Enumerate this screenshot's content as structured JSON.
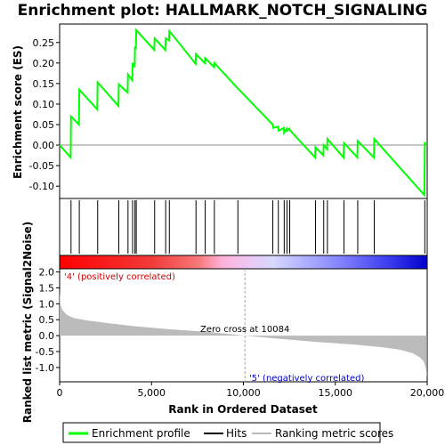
{
  "chart_data": {
    "type": "line",
    "title": "Enrichment plot: HALLMARK_NOTCH_SIGNALING",
    "top_panel": {
      "ylabel": "Enrichment score (ES)",
      "yticks": [
        "0.25",
        "0.20",
        "0.15",
        "0.10",
        "0.05",
        "0.00",
        "-0.05",
        "-0.10"
      ],
      "ylim": [
        -0.13,
        0.295
      ],
      "es_curve": {
        "name": "Enrichment profile",
        "color": "#00ff00",
        "x": [
          0,
          600,
          620,
          1050,
          1070,
          2050,
          2070,
          3200,
          3220,
          3700,
          3720,
          3950,
          3970,
          4080,
          4100,
          4150,
          4170,
          5150,
          5170,
          5750,
          5770,
          5950,
          5970,
          7400,
          7420,
          7900,
          7920,
          8400,
          8420,
          9700,
          11600,
          11620,
          11900,
          11920,
          12200,
          12220,
          12350,
          12370,
          12500,
          12520,
          13900,
          13920,
          14350,
          14370,
          14550,
          14570,
          15450,
          15470,
          16200,
          16220,
          17100,
          17120,
          19850,
          19870,
          20000
        ],
        "y": [
          0.0,
          -0.03,
          0.07,
          0.05,
          0.135,
          0.087,
          0.153,
          0.095,
          0.148,
          0.128,
          0.172,
          0.158,
          0.2,
          0.19,
          0.24,
          0.235,
          0.28,
          0.232,
          0.26,
          0.232,
          0.26,
          0.255,
          0.278,
          0.198,
          0.222,
          0.2,
          0.212,
          0.19,
          0.2,
          0.138,
          0.05,
          0.042,
          0.045,
          0.035,
          0.042,
          0.03,
          0.04,
          0.035,
          0.04,
          0.037,
          -0.03,
          -0.005,
          -0.025,
          0.0,
          -0.01,
          0.015,
          -0.03,
          0.005,
          -0.03,
          0.01,
          -0.03,
          0.015,
          -0.122,
          0.005,
          0.003
        ]
      }
    },
    "hits": {
      "name": "Hits",
      "x": [
        620,
        1070,
        2070,
        3220,
        3720,
        3970,
        4100,
        4170,
        5170,
        5770,
        5970,
        7420,
        7920,
        8420,
        9700,
        11600,
        11900,
        12220,
        12370,
        12520,
        13920,
        14370,
        14570,
        15470,
        16220,
        17120,
        19870
      ]
    },
    "bottom_panel": {
      "ylabel": "Ranked list metric (Signal2Noise)",
      "xlabel": "Rank in Ordered Dataset",
      "yticks": [
        "2.0",
        "1.5",
        "1.0",
        "0.5",
        "0.0",
        "-0.5",
        "-1.0"
      ],
      "ylim": [
        -1.45,
        2.1
      ],
      "xticks": [
        "0",
        "5,000",
        "10,000",
        "15,000",
        "20,000"
      ],
      "xlim": [
        0,
        20000
      ],
      "series_name": "Ranking metric scores",
      "metric_points": {
        "x": [
          0,
          40,
          150,
          400,
          800,
          1500,
          2500,
          4000,
          6000,
          8000,
          10084,
          12000,
          14000,
          16000,
          17500,
          18500,
          19200,
          19600,
          19800,
          19900,
          19950,
          19990
        ],
        "y": [
          1.45,
          1.0,
          0.8,
          0.65,
          0.55,
          0.48,
          0.4,
          0.3,
          0.2,
          0.12,
          0.0,
          -0.1,
          -0.2,
          -0.28,
          -0.36,
          -0.44,
          -0.55,
          -0.68,
          -0.8,
          -0.95,
          -1.1,
          -1.3
        ]
      },
      "zero_cross_label": "Zero cross at 10084",
      "zero_cross_x": 10084,
      "pos_label": "'4' (positively correlated)",
      "neg_label": "'5' (negatively correlated)",
      "pos_color": "#ff0000",
      "neg_color": "#0000ff"
    },
    "legend": [
      {
        "label": "Enrichment profile",
        "color": "#00ff00"
      },
      {
        "label": "Hits",
        "color": "#000000"
      },
      {
        "label": "Ranking metric scores",
        "color": "#bbbbbb"
      }
    ]
  }
}
